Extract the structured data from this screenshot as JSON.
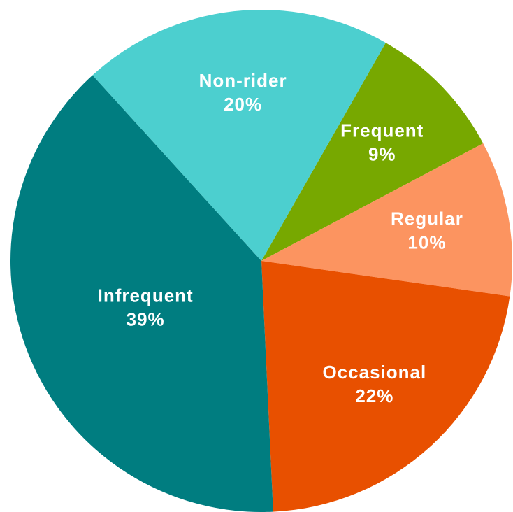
{
  "chart_data": {
    "type": "pie",
    "categories": [
      "Frequent",
      "Regular",
      "Occasional",
      "Infrequent",
      "Non-rider"
    ],
    "values": [
      9,
      10,
      22,
      39,
      20
    ],
    "value_labels": [
      "9%",
      "10%",
      "22%",
      "39%",
      "20%"
    ],
    "colors": [
      "#77a800",
      "#fc9460",
      "#e85000",
      "#007d80",
      "#4ccfcf"
    ]
  }
}
